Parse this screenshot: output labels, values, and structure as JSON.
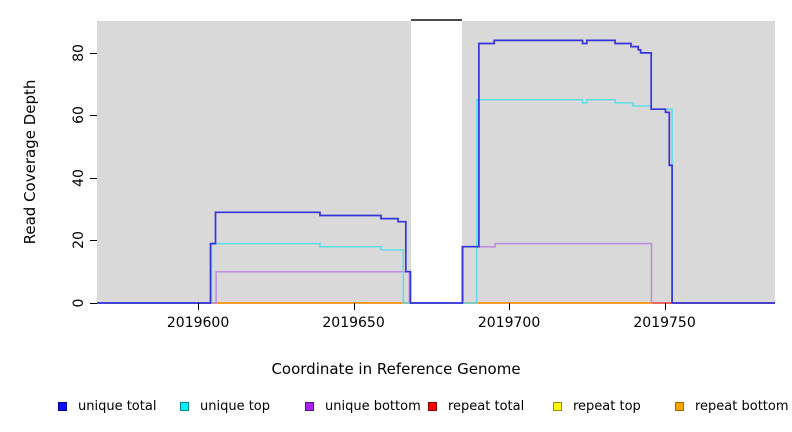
{
  "chart_data": {
    "type": "line",
    "subtype": "step",
    "title": "",
    "xlabel": "Coordinate in Reference Genome",
    "ylabel": "Read Coverage Depth",
    "xlim": [
      2019567.5,
      2019785.5
    ],
    "ylim": [
      0,
      90.2
    ],
    "grid": false,
    "plot_background": "#d9d9d9",
    "gap_region": {
      "from": 2019668.4,
      "to": 2019684.8
    },
    "x_ticks": [
      {
        "value": 2019600,
        "label": "2019600"
      },
      {
        "value": 2019650,
        "label": "2019650"
      },
      {
        "value": 2019700,
        "label": "2019700"
      },
      {
        "value": 2019750,
        "label": "2019750"
      }
    ],
    "y_ticks": [
      {
        "value": 0,
        "label": "0"
      },
      {
        "value": 20,
        "label": "20"
      },
      {
        "value": 40,
        "label": "40"
      },
      {
        "value": 60,
        "label": "60"
      },
      {
        "value": 80,
        "label": "80"
      }
    ],
    "series": [
      {
        "name": "repeat top",
        "color": "#f7ec13",
        "layer": "under",
        "width": 1.5,
        "start": 0,
        "steps": []
      },
      {
        "name": "repeat total",
        "color": "#e23b52",
        "layer": "under",
        "width": 1.5,
        "start": 0,
        "steps": []
      },
      {
        "name": "repeat bottom",
        "color": "#ff9e0e",
        "layer": "under",
        "width": 1.6,
        "start": 0,
        "steps": [],
        "end": 2019746.0
      },
      {
        "name": "unique bottom",
        "color": "#bd8ade",
        "layer": "over",
        "width": 1.5,
        "start": 0,
        "end": 2019745.8,
        "steps": [
          [
            2019605.8,
            10
          ],
          [
            2019667.9,
            0
          ],
          [
            2019685.2,
            18
          ],
          [
            2019695.5,
            19
          ],
          [
            2019745.8,
            0
          ]
        ]
      },
      {
        "name": "unique top",
        "color": "#5edde6",
        "layer": "over",
        "width": 1.5,
        "start": 0,
        "end": 2019752.4,
        "steps": [
          [
            2019604.3,
            19
          ],
          [
            2019639.2,
            18
          ],
          [
            2019658.8,
            17
          ],
          [
            2019666.0,
            0
          ],
          [
            2019689.6,
            65
          ],
          [
            2019723.6,
            64
          ],
          [
            2019725.0,
            65
          ],
          [
            2019734.1,
            64
          ],
          [
            2019739.8,
            63
          ],
          [
            2019745.7,
            62
          ],
          [
            2019752.4,
            0
          ]
        ]
      },
      {
        "name": "unique total",
        "color": "#3434da",
        "layer": "over",
        "width": 1.7,
        "start": 0,
        "steps": [
          [
            2019604.0,
            19
          ],
          [
            2019605.6,
            29
          ],
          [
            2019639.2,
            28
          ],
          [
            2019658.8,
            27
          ],
          [
            2019664.3,
            26
          ],
          [
            2019666.8,
            10
          ],
          [
            2019668.3,
            0
          ],
          [
            2019685.0,
            18
          ],
          [
            2019690.3,
            83
          ],
          [
            2019695.2,
            84
          ],
          [
            2019723.6,
            83
          ],
          [
            2019725.0,
            84
          ],
          [
            2019734.1,
            83
          ],
          [
            2019739.2,
            82
          ],
          [
            2019741.5,
            81
          ],
          [
            2019742.3,
            80
          ],
          [
            2019745.7,
            62
          ],
          [
            2019750.3,
            61
          ],
          [
            2019751.5,
            44
          ],
          [
            2019752.4,
            0
          ]
        ]
      }
    ],
    "legend": [
      {
        "label": "unique total",
        "fill": "#0d0df5",
        "border": "#0000a0"
      },
      {
        "label": "unique top",
        "fill": "#00f0f5",
        "border": "#00868b"
      },
      {
        "label": "unique bottom",
        "fill": "#a722ee",
        "border": "#5e0c9e"
      },
      {
        "label": "repeat total",
        "fill": "#ff0000",
        "border": "#8b0000"
      },
      {
        "label": "repeat top",
        "fill": "#ffff00",
        "border": "#8f8f00"
      },
      {
        "label": "repeat bottom",
        "fill": "#ffa500",
        "border": "#a86800"
      }
    ],
    "legend_position": "bottom"
  }
}
